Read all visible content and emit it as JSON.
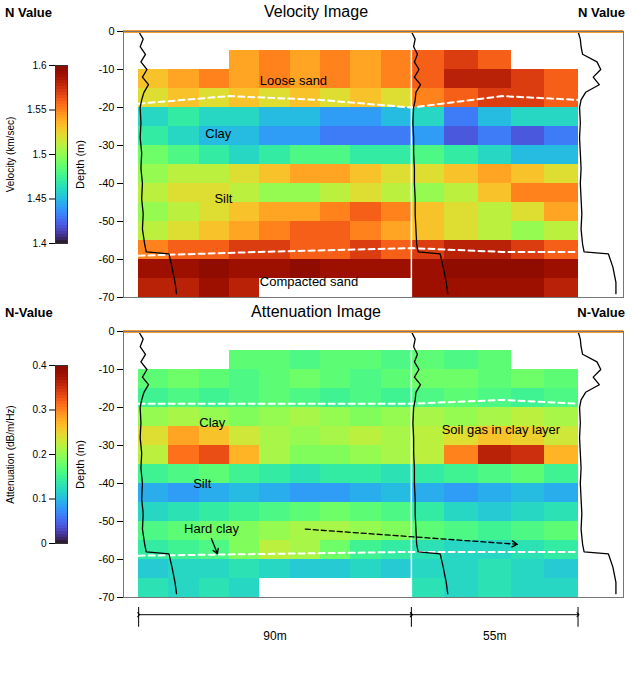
{
  "chart_data": [
    {
      "type": "heatmap",
      "title": "Velocity Image",
      "side_labels": [
        "N Value",
        "N Value"
      ],
      "ylabel": "Depth (m)",
      "ylim": [
        -70,
        0
      ],
      "yticks": [
        0,
        -10,
        -20,
        -30,
        -40,
        -50,
        -60,
        -70
      ],
      "xlim": [
        -5,
        160
      ],
      "tick_labels": "y",
      "x_bins": [
        0,
        10,
        20,
        30,
        40,
        50,
        60,
        70,
        80,
        90,
        101,
        112,
        123,
        134,
        145
      ],
      "depth_bins": [
        0,
        -5,
        -10,
        -15,
        -20,
        -25,
        -30,
        -35,
        -40,
        -45,
        -50,
        -55,
        -60,
        -65,
        -70
      ],
      "cells": [
        [
          null,
          null,
          null,
          null,
          null,
          null,
          null,
          null,
          null,
          null,
          null,
          null,
          null,
          null
        ],
        [
          null,
          null,
          null,
          1.54,
          1.55,
          1.54,
          1.55,
          1.54,
          1.55,
          1.56,
          1.57,
          1.56,
          null,
          null
        ],
        [
          1.53,
          1.54,
          1.55,
          1.54,
          1.55,
          1.54,
          1.55,
          1.54,
          1.55,
          1.56,
          1.58,
          1.58,
          1.57,
          1.56
        ],
        [
          1.52,
          1.53,
          1.52,
          1.53,
          1.52,
          1.53,
          1.52,
          1.53,
          1.52,
          1.55,
          1.56,
          1.57,
          1.57,
          1.56
        ],
        [
          1.46,
          1.47,
          1.46,
          1.46,
          1.45,
          1.45,
          1.44,
          1.44,
          1.45,
          1.46,
          1.43,
          1.45,
          1.46,
          1.46
        ],
        [
          1.47,
          1.46,
          1.45,
          1.45,
          1.44,
          1.44,
          1.43,
          1.43,
          1.43,
          1.44,
          1.42,
          1.43,
          1.42,
          1.43
        ],
        [
          1.49,
          1.48,
          1.47,
          1.46,
          1.47,
          1.48,
          1.48,
          1.47,
          1.47,
          1.48,
          1.47,
          1.46,
          1.45,
          1.45
        ],
        [
          1.5,
          1.51,
          1.51,
          1.52,
          1.53,
          1.54,
          1.54,
          1.53,
          1.52,
          1.52,
          1.53,
          1.54,
          1.53,
          1.52
        ],
        [
          1.51,
          1.52,
          1.52,
          1.51,
          1.5,
          1.5,
          1.51,
          1.52,
          1.51,
          1.5,
          1.51,
          1.53,
          1.55,
          1.55
        ],
        [
          1.5,
          1.51,
          1.52,
          1.53,
          1.54,
          1.54,
          1.55,
          1.56,
          1.55,
          1.53,
          1.52,
          1.51,
          1.52,
          1.54
        ],
        [
          1.51,
          1.52,
          1.53,
          1.54,
          1.55,
          1.56,
          1.56,
          1.55,
          1.54,
          1.53,
          1.52,
          1.51,
          1.5,
          1.51
        ],
        [
          1.55,
          1.56,
          1.56,
          1.57,
          1.57,
          1.56,
          1.56,
          1.57,
          1.56,
          1.57,
          1.58,
          1.58,
          1.57,
          1.56
        ],
        [
          1.59,
          1.59,
          1.6,
          1.59,
          1.59,
          1.6,
          1.59,
          1.59,
          1.59,
          1.59,
          1.6,
          1.6,
          1.6,
          1.59
        ],
        [
          1.58,
          1.58,
          1.59,
          1.58,
          null,
          null,
          null,
          null,
          null,
          1.59,
          1.59,
          1.59,
          1.59,
          1.58
        ]
      ],
      "colorbar": {
        "label": "Velocity (km/sec)",
        "range": [
          1.4,
          1.6
        ],
        "ticks": [
          1.4,
          1.45,
          1.5,
          1.55,
          1.6
        ]
      },
      "boundaries": [
        {
          "x": [
            0,
            30,
            60,
            90,
            120,
            145
          ],
          "depth": [
            -19,
            -17,
            -18,
            -20,
            -17,
            -18
          ]
        },
        {
          "x": [
            0,
            40,
            90,
            120,
            145
          ],
          "depth": [
            -59,
            -58,
            -57,
            -58,
            -58
          ]
        }
      ],
      "annotations": [
        {
          "text": "Loose sand",
          "x": 40,
          "depth": -13
        },
        {
          "text": "Clay",
          "x": 22,
          "depth": -27
        },
        {
          "text": "Silt",
          "x": 25,
          "depth": -44
        },
        {
          "text": "Compacted sand",
          "x": 40,
          "depth": -66
        }
      ],
      "n_value": [
        {
          "x": 0,
          "depth": [
            0,
            -2,
            -4,
            -6,
            -8,
            -10,
            -12,
            -14,
            -16,
            -18,
            -20,
            -24,
            -28,
            -32,
            -36,
            -40,
            -44,
            -48,
            -52,
            -56,
            -58,
            -58.5,
            -62,
            -66,
            -69
          ],
          "values": [
            0,
            6,
            2,
            9,
            3,
            11,
            5,
            13,
            7,
            4,
            2,
            3,
            2,
            4,
            3,
            5,
            4,
            6,
            5,
            8,
            10,
            40,
            44,
            48,
            50
          ]
        },
        {
          "x": 90,
          "depth": [
            0,
            -2,
            -4,
            -6,
            -8,
            -10,
            -12,
            -14,
            -16,
            -18,
            -20,
            -24,
            -28,
            -32,
            -36,
            -40,
            -44,
            -48,
            -52,
            -56,
            -58,
            -58.5,
            -62,
            -66,
            -69
          ],
          "values": [
            0,
            5,
            3,
            8,
            4,
            10,
            4,
            12,
            6,
            5,
            3,
            2,
            3,
            3,
            4,
            4,
            5,
            5,
            6,
            7,
            9,
            38,
            42,
            46,
            48
          ]
        },
        {
          "x": 145,
          "depth": [
            0,
            -2,
            -4,
            -6,
            -8,
            -10,
            -12,
            -14,
            -16,
            -18,
            -20,
            -24,
            -28,
            -32,
            -36,
            -40,
            -44,
            -48,
            -52,
            -56,
            -58,
            -58.5,
            -62,
            -66,
            -69
          ],
          "values": [
            0,
            3,
            4,
            6,
            25,
            30,
            20,
            28,
            10,
            4,
            2,
            3,
            2,
            3,
            4,
            3,
            4,
            5,
            4,
            6,
            8,
            40,
            46,
            50,
            50
          ]
        }
      ]
    },
    {
      "type": "heatmap",
      "title": "Attenuation Image",
      "side_labels": [
        "N-Value",
        "N-Value"
      ],
      "ylabel": "Depth (m)",
      "ylim": [
        -70,
        0
      ],
      "yticks": [
        0,
        -10,
        -20,
        -30,
        -40,
        -50,
        -60,
        -70
      ],
      "xlim": [
        -5,
        160
      ],
      "tick_labels": "y",
      "x_bins": [
        0,
        10,
        20,
        30,
        40,
        50,
        60,
        70,
        80,
        90,
        101,
        112,
        123,
        134,
        145
      ],
      "depth_bins": [
        0,
        -5,
        -10,
        -15,
        -20,
        -25,
        -30,
        -35,
        -40,
        -45,
        -50,
        -55,
        -60,
        -65,
        -70
      ],
      "cells": [
        [
          null,
          null,
          null,
          null,
          null,
          null,
          null,
          null,
          null,
          null,
          null,
          null,
          null,
          null
        ],
        [
          null,
          null,
          null,
          0.17,
          0.17,
          0.16,
          0.17,
          0.17,
          0.16,
          0.17,
          0.16,
          0.17,
          null,
          null
        ],
        [
          0.17,
          0.18,
          0.17,
          0.16,
          0.17,
          0.18,
          0.17,
          0.16,
          0.17,
          0.18,
          0.18,
          0.17,
          0.18,
          0.17
        ],
        [
          0.15,
          0.16,
          0.15,
          0.16,
          0.17,
          0.16,
          0.15,
          0.16,
          0.15,
          0.16,
          0.17,
          0.16,
          0.15,
          0.16
        ],
        [
          0.2,
          0.21,
          0.2,
          0.19,
          0.2,
          0.21,
          0.2,
          0.19,
          0.2,
          0.21,
          0.2,
          0.21,
          0.22,
          0.21
        ],
        [
          0.24,
          0.28,
          0.26,
          0.23,
          0.21,
          0.2,
          0.21,
          0.22,
          0.21,
          0.22,
          0.24,
          0.26,
          0.25,
          0.23
        ],
        [
          0.22,
          0.31,
          0.33,
          0.27,
          0.21,
          0.19,
          0.19,
          0.2,
          0.21,
          0.22,
          0.3,
          0.36,
          0.35,
          0.27
        ],
        [
          0.15,
          0.16,
          0.17,
          0.15,
          0.14,
          0.13,
          0.14,
          0.14,
          0.13,
          0.14,
          0.15,
          0.16,
          0.17,
          0.15
        ],
        [
          0.09,
          0.08,
          0.09,
          0.1,
          0.09,
          0.08,
          0.08,
          0.09,
          0.1,
          0.09,
          0.08,
          0.09,
          0.1,
          0.09
        ],
        [
          0.12,
          0.13,
          0.14,
          0.15,
          0.16,
          0.17,
          0.18,
          0.17,
          0.16,
          0.14,
          0.12,
          0.11,
          0.12,
          0.13
        ],
        [
          0.16,
          0.17,
          0.18,
          0.19,
          0.2,
          0.21,
          0.21,
          0.2,
          0.19,
          0.17,
          0.16,
          0.15,
          0.16,
          0.17
        ],
        [
          0.14,
          0.15,
          0.16,
          0.19,
          0.22,
          0.21,
          0.18,
          0.15,
          0.14,
          0.13,
          0.12,
          0.12,
          0.13,
          0.14
        ],
        [
          0.11,
          0.12,
          0.12,
          0.13,
          0.12,
          0.11,
          0.11,
          0.12,
          0.11,
          0.12,
          0.12,
          0.13,
          0.12,
          0.11
        ],
        [
          0.13,
          0.12,
          0.13,
          0.12,
          null,
          null,
          null,
          null,
          null,
          0.13,
          0.12,
          0.13,
          0.12,
          0.12
        ]
      ],
      "colorbar": {
        "label": "Attenuation (dB/m/Hz)",
        "range": [
          0,
          0.4
        ],
        "ticks": [
          0,
          0.1,
          0.2,
          0.3,
          0.4
        ]
      },
      "boundaries": [
        {
          "x": [
            0,
            45,
            90,
            120,
            145
          ],
          "depth": [
            -19,
            -19,
            -19,
            -18,
            -19
          ]
        },
        {
          "x": [
            0,
            90,
            145
          ],
          "depth": [
            -59,
            -58,
            -58
          ]
        }
      ],
      "annotations": [
        {
          "text": "Clay",
          "x": 20,
          "depth": -24
        },
        {
          "text": "Soil gas in clay layer",
          "x": 100,
          "depth": -26
        },
        {
          "text": "Silt",
          "x": 18,
          "depth": -40
        },
        {
          "text": "Hard clay",
          "x": 15,
          "depth": -52
        }
      ],
      "arrows": [
        {
          "x1": 24,
          "depth1": -54.5,
          "x2": 26,
          "depth2": -58.5,
          "line_style": "solid"
        },
        {
          "x1": 55,
          "depth1": -52,
          "x2": 125,
          "depth2": -56,
          "line_style": "dashed"
        }
      ],
      "n_value": [
        {
          "x": 0,
          "depth": [
            0,
            -2,
            -4,
            -6,
            -8,
            -10,
            -12,
            -14,
            -16,
            -18,
            -20,
            -24,
            -28,
            -32,
            -36,
            -40,
            -44,
            -48,
            -52,
            -56,
            -58,
            -58.5,
            -62,
            -66,
            -69
          ],
          "values": [
            0,
            6,
            2,
            9,
            3,
            11,
            5,
            13,
            7,
            4,
            2,
            3,
            2,
            4,
            3,
            5,
            4,
            6,
            5,
            8,
            10,
            40,
            44,
            48,
            50
          ]
        },
        {
          "x": 90,
          "depth": [
            0,
            -2,
            -4,
            -6,
            -8,
            -10,
            -12,
            -14,
            -16,
            -18,
            -20,
            -24,
            -28,
            -32,
            -36,
            -40,
            -44,
            -48,
            -52,
            -56,
            -58,
            -58.5,
            -62,
            -66,
            -69
          ],
          "values": [
            0,
            5,
            3,
            8,
            4,
            10,
            4,
            12,
            6,
            5,
            3,
            2,
            3,
            3,
            4,
            4,
            5,
            5,
            6,
            7,
            9,
            38,
            42,
            46,
            48
          ]
        },
        {
          "x": 145,
          "depth": [
            0,
            -2,
            -4,
            -6,
            -8,
            -10,
            -12,
            -14,
            -16,
            -18,
            -20,
            -24,
            -28,
            -32,
            -36,
            -40,
            -44,
            -48,
            -52,
            -56,
            -58,
            -58.5,
            -62,
            -66,
            -69
          ],
          "values": [
            0,
            3,
            4,
            6,
            25,
            30,
            20,
            28,
            10,
            4,
            2,
            3,
            2,
            3,
            4,
            3,
            4,
            5,
            4,
            6,
            8,
            40,
            46,
            50,
            50
          ]
        }
      ]
    }
  ],
  "dimensions": [
    {
      "label": "90m",
      "length": 90
    },
    {
      "label": "55m",
      "length": 55
    }
  ]
}
